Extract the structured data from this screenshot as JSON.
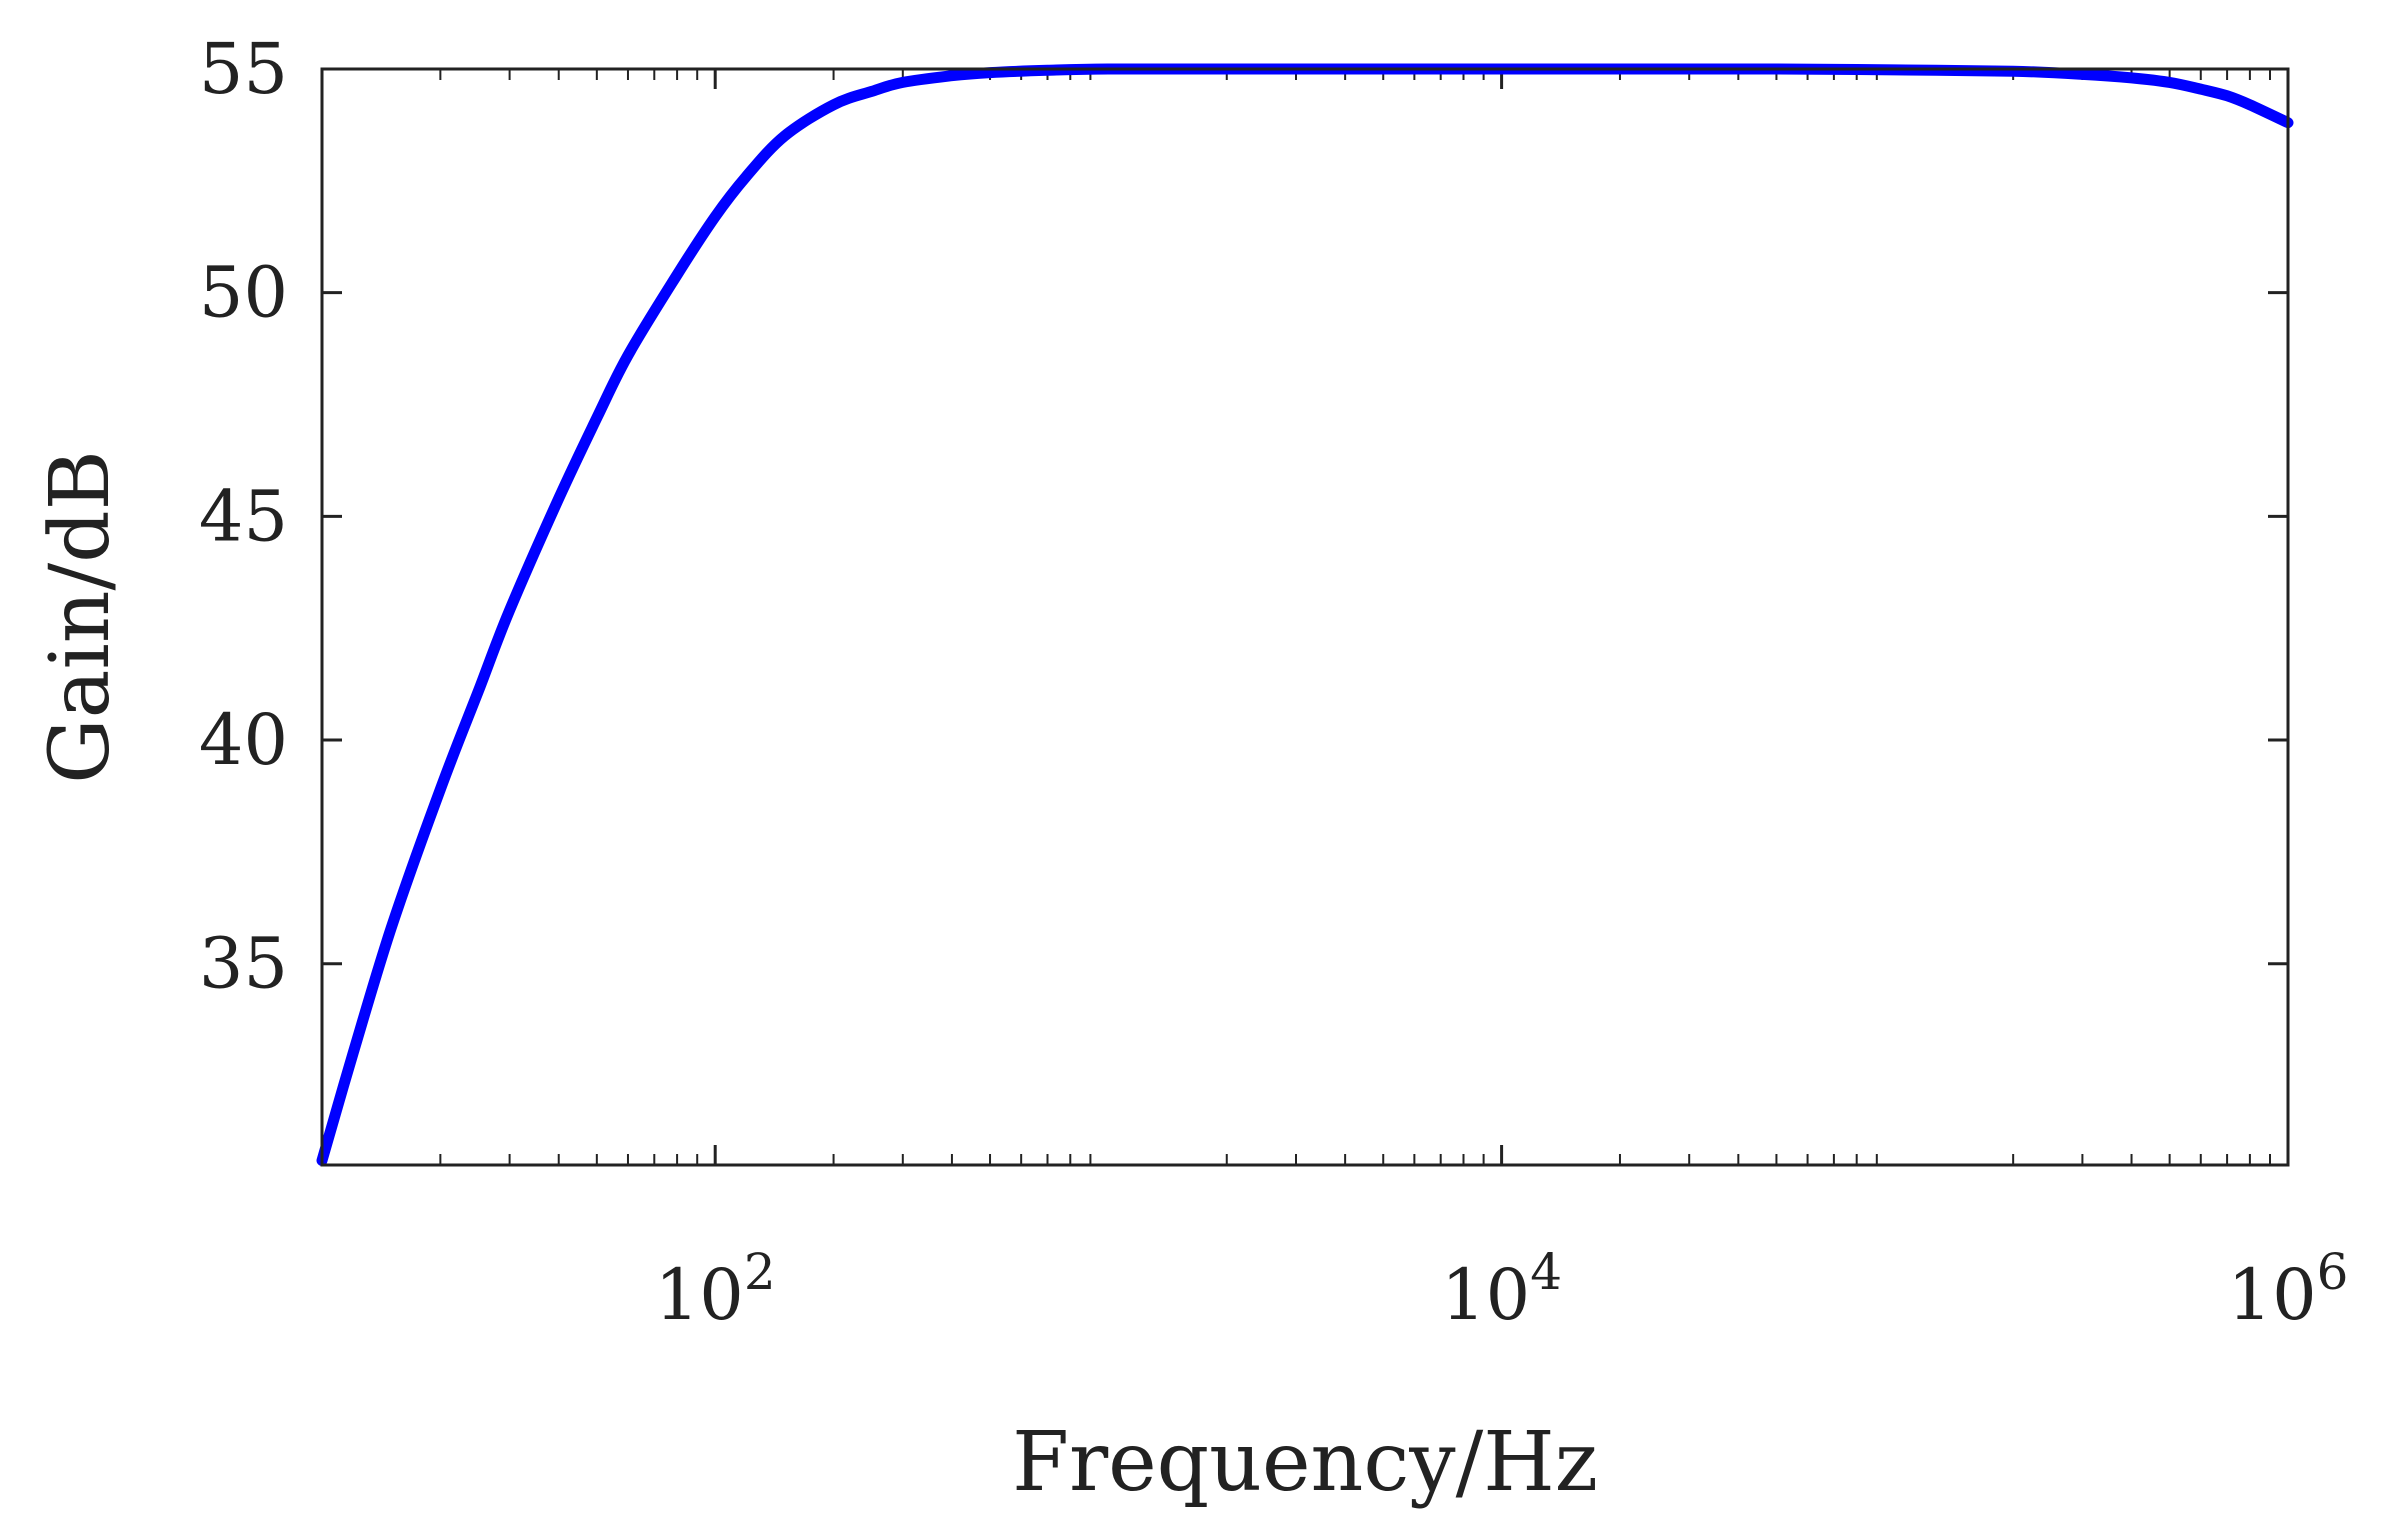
{
  "chart_data": {
    "type": "line",
    "title": "",
    "xlabel": "Frequency/Hz",
    "ylabel": "Gain/dB",
    "xscale": "log",
    "xlim": [
      10,
      1000000
    ],
    "ylim": [
      30.5,
      55
    ],
    "grid": false,
    "legend": "none",
    "x_ticks": [
      {
        "value": 100,
        "base": "10",
        "exp": "2"
      },
      {
        "value": 10000,
        "base": "10",
        "exp": "4"
      },
      {
        "value": 1000000,
        "base": "10",
        "exp": "6"
      }
    ],
    "y_ticks": [
      35,
      40,
      45,
      50,
      55
    ],
    "series": [
      {
        "color": "#0000ff",
        "x": [
          10,
          12,
          15,
          20,
          25,
          30,
          40,
          50,
          60,
          80,
          100,
          120,
          150,
          200,
          250,
          300,
          400,
          500,
          700,
          1000,
          2000,
          5000,
          10000,
          20000,
          50000,
          100000,
          200000,
          300000,
          400000,
          500000,
          600000,
          700000,
          800000,
          1000000
        ],
        "y": [
          30.6,
          33.0,
          35.8,
          38.9,
          41.1,
          42.9,
          45.4,
          47.2,
          48.6,
          50.4,
          51.7,
          52.6,
          53.5,
          54.2,
          54.5,
          54.7,
          54.85,
          54.92,
          54.97,
          55.0,
          55.0,
          55.0,
          55.0,
          55.0,
          55.0,
          54.98,
          54.95,
          54.88,
          54.8,
          54.7,
          54.55,
          54.4,
          54.2,
          53.8
        ]
      }
    ]
  }
}
